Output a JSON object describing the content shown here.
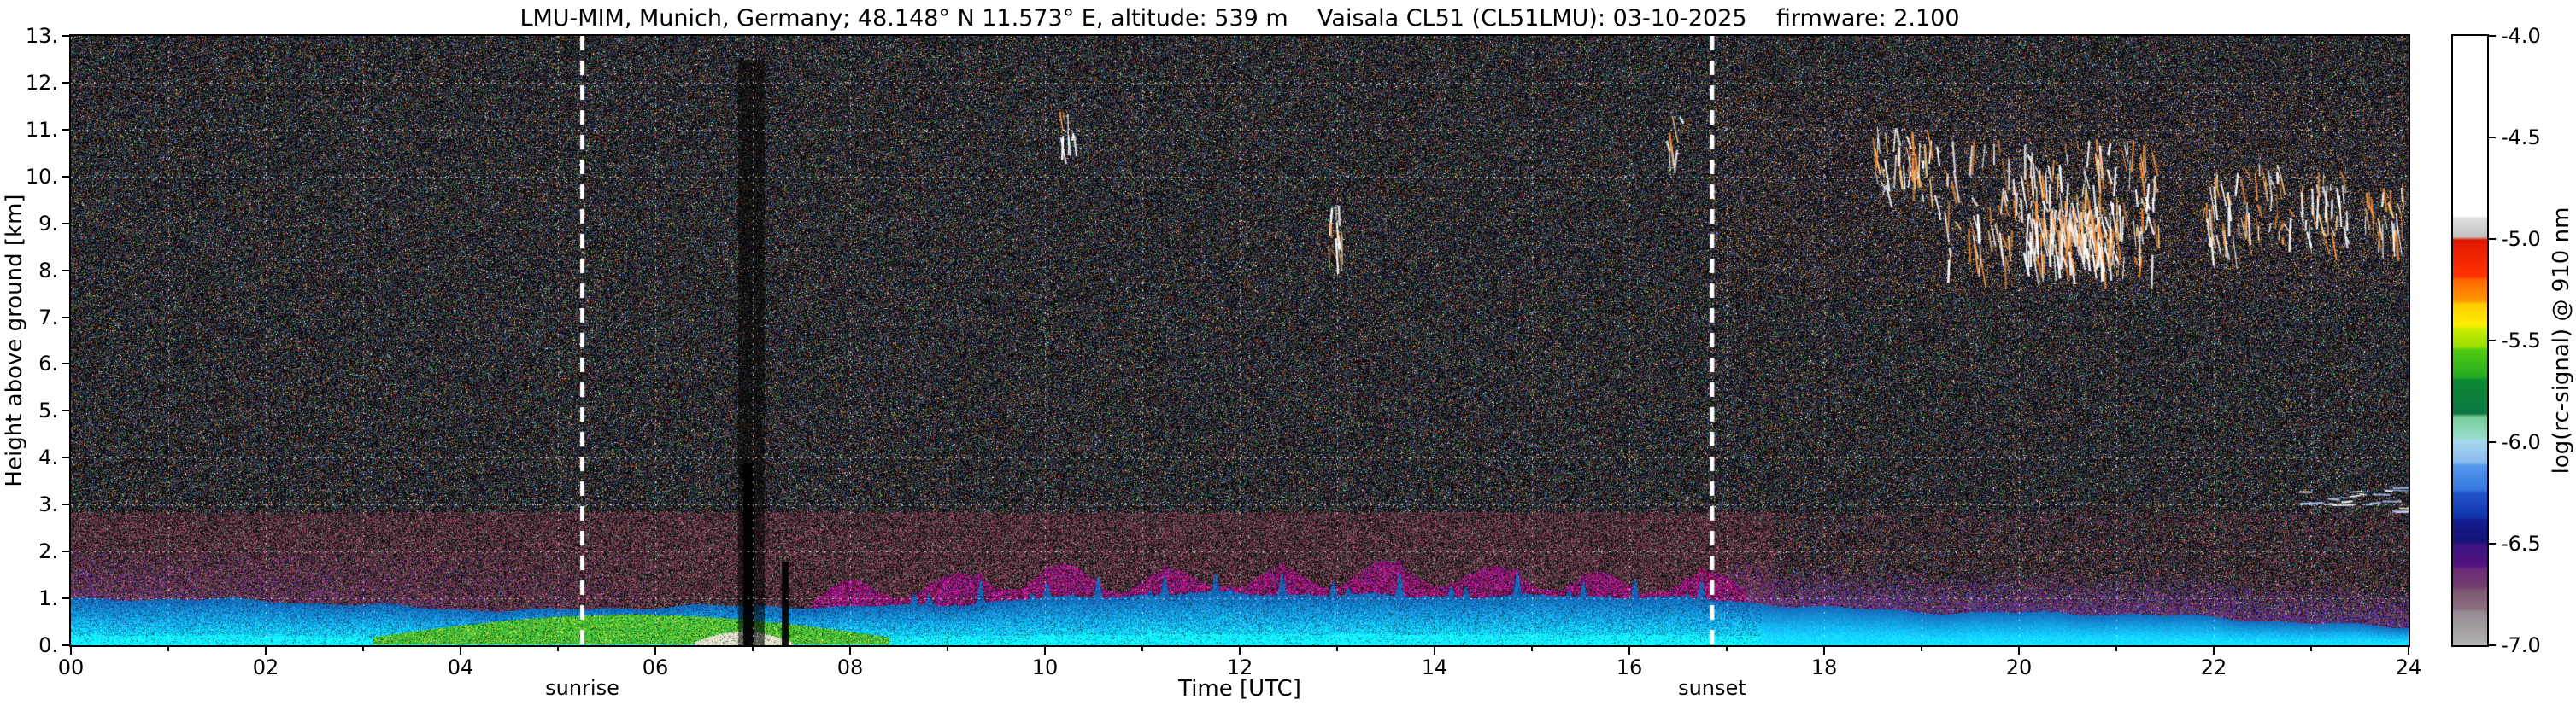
{
  "chart_data": {
    "type": "heatmap",
    "title": "LMU-MIM, Munich, Germany; 48.148° N 11.573° E, altitude: 539 m    Vaisala CL51 (CL51LMU): 03-10-2025    firmware: 2.100",
    "xlabel": "Time [UTC]",
    "ylabel": "Height above ground [km]",
    "xlim": [
      0,
      24
    ],
    "ylim": [
      0,
      13
    ],
    "x_ticks": {
      "values": [
        0,
        2,
        4,
        6,
        8,
        10,
        12,
        14,
        16,
        18,
        20,
        22,
        24
      ],
      "labels": [
        "00",
        "02",
        "04",
        "06",
        "08",
        "10",
        "12",
        "14",
        "16",
        "18",
        "20",
        "22",
        "24"
      ]
    },
    "y_ticks": {
      "values": [
        0,
        1,
        2,
        3,
        4,
        5,
        6,
        7,
        8,
        9,
        10,
        11,
        12,
        13
      ],
      "labels": [
        "0.",
        "1.",
        "2.",
        "3.",
        "4.",
        "5.",
        "6.",
        "7.",
        "8.",
        "9.",
        "10.",
        "11.",
        "12.",
        "13."
      ]
    },
    "grid": {
      "x_step_hours": 1,
      "y_step_km": 1,
      "style": "white dotted"
    },
    "annotations": [
      {
        "label": "sunrise",
        "time_utc": 5.25
      },
      {
        "label": "sunset",
        "time_utc": 16.85
      }
    ],
    "colorbar": {
      "label": "log(rc-signal) @ 910 nm",
      "vmax": -4.0,
      "vmin": -7.0,
      "tick_values": [
        -4.0,
        -4.5,
        -5.0,
        -5.5,
        -6.0,
        -6.5,
        -7.0
      ],
      "tick_labels": [
        "-4.0",
        "-4.5",
        "-5.0",
        "-5.5",
        "-6.0",
        "-6.5",
        "-7.0"
      ],
      "stops": [
        [
          0.0,
          "#ffffff"
        ],
        [
          0.295,
          "#ffffff"
        ],
        [
          0.3,
          "#dedede"
        ],
        [
          0.33,
          "#c2c2c2"
        ],
        [
          0.335,
          "#e01800"
        ],
        [
          0.395,
          "#ff3300"
        ],
        [
          0.4,
          "#ff6600"
        ],
        [
          0.435,
          "#ff9900"
        ],
        [
          0.44,
          "#ffcc00"
        ],
        [
          0.475,
          "#ffee00"
        ],
        [
          0.48,
          "#ccee00"
        ],
        [
          0.51,
          "#99dd00"
        ],
        [
          0.515,
          "#55cc11"
        ],
        [
          0.56,
          "#22aa22"
        ],
        [
          0.565,
          "#0d8833"
        ],
        [
          0.62,
          "#0b7744"
        ],
        [
          0.625,
          "#77cc99"
        ],
        [
          0.66,
          "#99ddcc"
        ],
        [
          0.665,
          "#a8d8ee"
        ],
        [
          0.7,
          "#88bbee"
        ],
        [
          0.705,
          "#5599ee"
        ],
        [
          0.745,
          "#3377dd"
        ],
        [
          0.75,
          "#2255cc"
        ],
        [
          0.79,
          "#1133aa"
        ],
        [
          0.795,
          "#151d8f"
        ],
        [
          0.83,
          "#131277"
        ],
        [
          0.835,
          "#3a1280"
        ],
        [
          0.87,
          "#55117f"
        ],
        [
          0.875,
          "#6a2a77"
        ],
        [
          0.905,
          "#74406e"
        ],
        [
          0.91,
          "#7e5573"
        ],
        [
          0.94,
          "#8a6f80"
        ],
        [
          0.945,
          "#958b92"
        ],
        [
          0.975,
          "#a3a0a2"
        ],
        [
          1.0,
          "#b5b2b4"
        ]
      ]
    },
    "features": {
      "render_seed": 20251003,
      "boundary_layer": {
        "description": "Blue/cyan aerosol boundary layer in lowest ~1 km; green band 03-08 UTC below ~0.6 km; bright white near-surface signal around 07 UTC; smooth blue layer after sunset thinning from ~0.9 km to ~0.45 km by 24 UTC",
        "top_km_points": [
          [
            0,
            0.98
          ],
          [
            3,
            0.9
          ],
          [
            5,
            0.75
          ],
          [
            6.5,
            0.8
          ],
          [
            8,
            0.85
          ],
          [
            10,
            1.0
          ],
          [
            12.5,
            1.1
          ],
          [
            14,
            1.1
          ],
          [
            16,
            1.0
          ],
          [
            17,
            0.92
          ],
          [
            18,
            0.84
          ],
          [
            20,
            0.7
          ],
          [
            22,
            0.57
          ],
          [
            24,
            0.44
          ]
        ],
        "green_band_time_range": [
          2.9,
          8.6
        ],
        "green_band_max_depth_km": 0.54,
        "surface_white_time_range": [
          6.3,
          7.5
        ]
      },
      "aerosol_cap": {
        "description": "Magenta/red residual aerosol speckle capping the mixed layer",
        "time_range": [
          7.6,
          17.2
        ],
        "thickness_km": 0.5
      },
      "purple_band": {
        "description": "Violet aerosol speckle band up to ~2 km before sunrise and above the layer after sunset",
        "left_time_range": [
          0,
          6
        ],
        "left_top_km": 2.05,
        "evening_start": 17,
        "evening_thickness_km": 0.6
      },
      "brown_band_top_km": 2.85,
      "dark_columns": [
        {
          "time_range": [
            6.85,
            7.12
          ],
          "top_km": 12.5,
          "factor": 0.45
        },
        {
          "time_range": [
            6.9,
            7.01
          ],
          "top_km": 3.9,
          "factor": 0.08
        },
        {
          "time_range": [
            7.29,
            7.36
          ],
          "top_km": 1.8,
          "factor": 0.1
        }
      ],
      "plumes": {
        "description": "Convective blue plumes overshooting layer top 08-17 UTC",
        "time_range": [
          8.2,
          16.9
        ],
        "max_overshoot_km": 0.5
      },
      "enhanced_speckle_region": {
        "description": "Enhanced orange/green speckle upper right",
        "time_range": [
          16.8,
          24
        ],
        "height_km": [
          7.5,
          11.8
        ]
      },
      "clouds": [
        {
          "time_range": [
            19.15,
            21.45
          ],
          "height_km": [
            8.2,
            10.8
          ],
          "n": 190,
          "type": "streak"
        },
        {
          "time_range": [
            20.1,
            21.0
          ],
          "height_km": [
            8.3,
            9.5
          ],
          "n": 130,
          "type": "streak"
        },
        {
          "time_range": [
            18.5,
            19.15
          ],
          "height_km": [
            9.6,
            11.1
          ],
          "n": 40,
          "type": "streak"
        },
        {
          "time_range": [
            21.9,
            23.4
          ],
          "height_km": [
            8.7,
            10.3
          ],
          "n": 90,
          "type": "streak"
        },
        {
          "time_range": [
            23.55,
            23.95
          ],
          "height_km": [
            8.8,
            9.9
          ],
          "n": 28,
          "type": "streak"
        },
        {
          "time_range": [
            12.9,
            13.05
          ],
          "height_km": [
            8.4,
            9.4
          ],
          "n": 12,
          "type": "streak"
        },
        {
          "time_range": [
            10.15,
            10.3
          ],
          "height_km": [
            10.7,
            11.4
          ],
          "n": 9,
          "type": "streak"
        },
        {
          "time_range": [
            16.38,
            16.52
          ],
          "height_km": [
            10.3,
            11.3
          ],
          "n": 8,
          "type": "streak"
        },
        {
          "time_range": [
            22.85,
            23.95
          ],
          "height_km": [
            2.8,
            3.35
          ],
          "n": 22,
          "type": "dash"
        }
      ]
    }
  }
}
